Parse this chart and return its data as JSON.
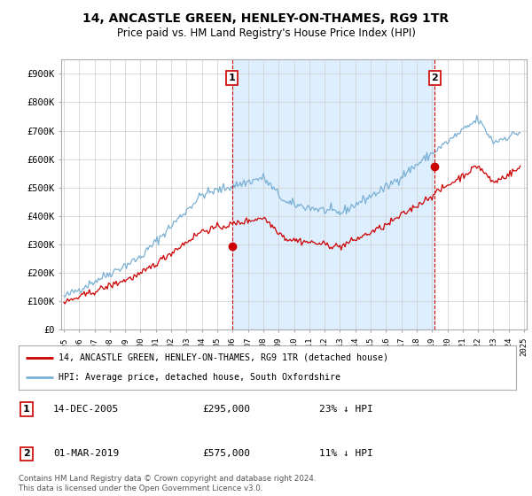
{
  "title": "14, ANCASTLE GREEN, HENLEY-ON-THAMES, RG9 1TR",
  "subtitle": "Price paid vs. HM Land Registry's House Price Index (HPI)",
  "title_fontsize": 10,
  "subtitle_fontsize": 8.5,
  "background_color": "#ffffff",
  "plot_bg_color": "#ffffff",
  "grid_color": "#cccccc",
  "hpi_color": "#7ab0d4",
  "price_color": "#cc0000",
  "shade_color": "#ddeeff",
  "ylim": [
    0,
    950000
  ],
  "yticks": [
    0,
    100000,
    200000,
    300000,
    400000,
    500000,
    600000,
    700000,
    800000,
    900000
  ],
  "ytick_labels": [
    "£0",
    "£100K",
    "£200K",
    "£300K",
    "£400K",
    "£500K",
    "£600K",
    "£700K",
    "£800K",
    "£900K"
  ],
  "transaction1_date": 2005.96,
  "transaction1_price": 295000,
  "transaction2_date": 2019.17,
  "transaction2_price": 575000,
  "legend_line1": "14, ANCASTLE GREEN, HENLEY-ON-THAMES, RG9 1TR (detached house)",
  "legend_line2": "HPI: Average price, detached house, South Oxfordshire",
  "annotation1": "14-DEC-2005",
  "annotation1_price": "£295,000",
  "annotation1_hpi": "23% ↓ HPI",
  "annotation2": "01-MAR-2019",
  "annotation2_price": "£575,000",
  "annotation2_hpi": "11% ↓ HPI",
  "footer": "Contains HM Land Registry data © Crown copyright and database right 2024.\nThis data is licensed under the Open Government Licence v3.0."
}
